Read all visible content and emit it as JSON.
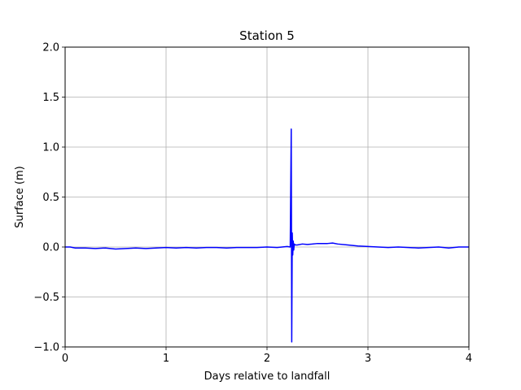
{
  "chart_data": {
    "type": "line",
    "title": "Station 5",
    "xlabel": "Days relative to landfall",
    "ylabel": "Surface (m)",
    "xlim": [
      0,
      4
    ],
    "ylim": [
      -1.0,
      2.0
    ],
    "grid": true,
    "x_ticks": [
      0,
      1,
      2,
      3,
      4
    ],
    "x_tick_labels": [
      "0",
      "1",
      "2",
      "3",
      "4"
    ],
    "y_ticks": [
      -1.0,
      -0.5,
      0.0,
      0.5,
      1.0,
      1.5,
      2.0
    ],
    "y_tick_labels": [
      "−1.0",
      "−0.5",
      "0.0",
      "0.5",
      "1.0",
      "1.5",
      "2.0"
    ],
    "series": [
      {
        "color": "#0000ff",
        "x": [
          0.0,
          0.05,
          0.1,
          0.2,
          0.3,
          0.4,
          0.5,
          0.6,
          0.7,
          0.8,
          0.9,
          1.0,
          1.1,
          1.2,
          1.3,
          1.4,
          1.5,
          1.6,
          1.7,
          1.8,
          1.9,
          2.0,
          2.1,
          2.2,
          2.23,
          2.24,
          2.245,
          2.25,
          2.255,
          2.26,
          2.265,
          2.27,
          2.28,
          2.3,
          2.35,
          2.4,
          2.5,
          2.6,
          2.65,
          2.7,
          2.8,
          2.9,
          3.0,
          3.1,
          3.2,
          3.3,
          3.4,
          3.5,
          3.6,
          3.7,
          3.8,
          3.9,
          4.0
        ],
        "y": [
          0.0,
          0.0,
          -0.01,
          -0.01,
          -0.015,
          -0.01,
          -0.02,
          -0.015,
          -0.01,
          -0.015,
          -0.01,
          -0.005,
          -0.01,
          -0.005,
          -0.01,
          -0.005,
          -0.005,
          -0.01,
          -0.005,
          -0.005,
          -0.005,
          0.0,
          -0.005,
          0.005,
          0.0,
          1.18,
          -0.95,
          0.14,
          -0.08,
          0.06,
          -0.03,
          0.03,
          0.02,
          0.02,
          0.03,
          0.025,
          0.035,
          0.035,
          0.04,
          0.03,
          0.02,
          0.01,
          0.005,
          0.0,
          -0.005,
          0.0,
          -0.005,
          -0.01,
          -0.005,
          0.0,
          -0.01,
          0.0,
          0.0
        ]
      }
    ]
  }
}
